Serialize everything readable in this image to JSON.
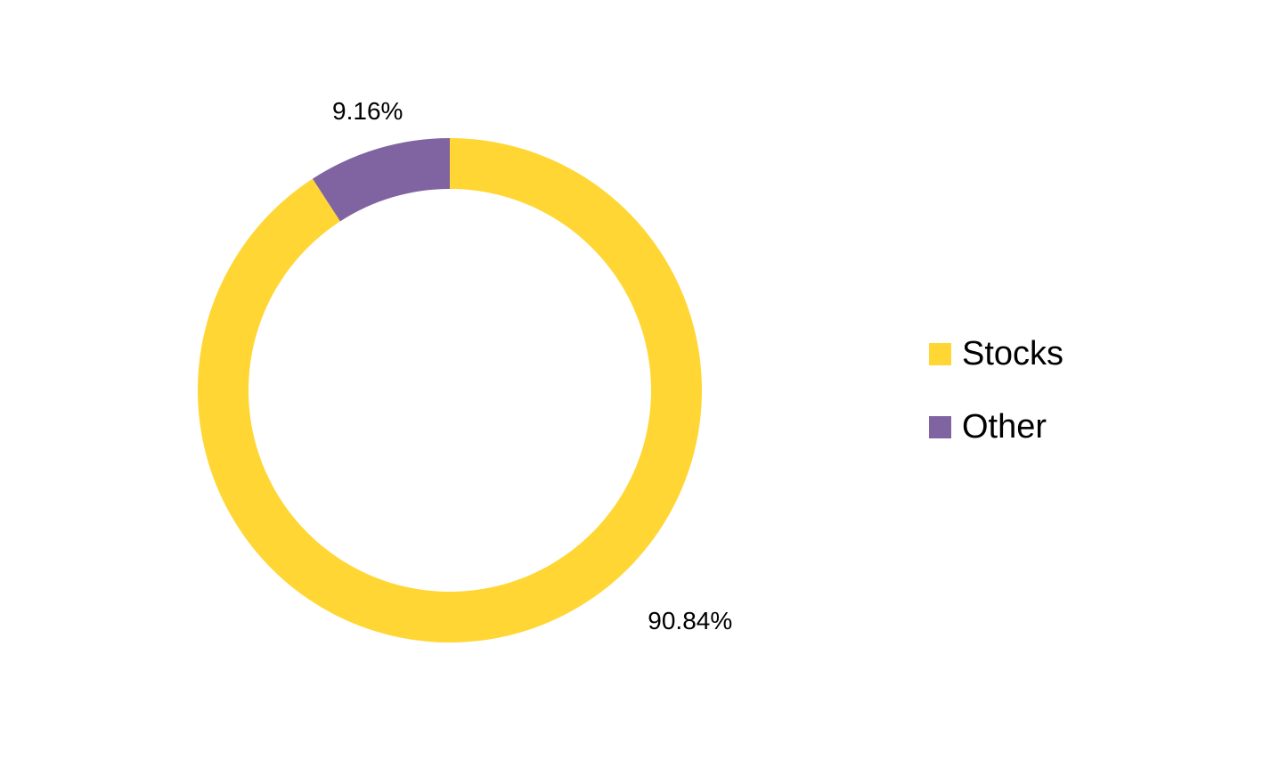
{
  "chart_data": {
    "type": "donut",
    "categories": [
      "Stocks",
      "Other"
    ],
    "values": [
      90.84,
      9.16
    ],
    "value_labels": [
      "90.84%",
      "9.16%"
    ],
    "colors": [
      "#FFD633",
      "#8064A2"
    ],
    "legend": "right"
  }
}
